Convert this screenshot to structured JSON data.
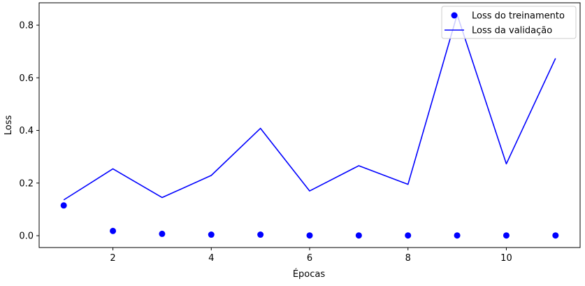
{
  "chart_data": {
    "type": "line",
    "title": "",
    "xlabel": "Épocas",
    "ylabel": "Loss",
    "xlim": [
      0.5,
      11.5
    ],
    "ylim": [
      -0.045,
      0.885
    ],
    "x_ticks": [
      2,
      4,
      6,
      8,
      10
    ],
    "y_ticks": [
      0.0,
      0.2,
      0.4,
      0.6,
      0.8
    ],
    "x_tick_labels": [
      "2",
      "4",
      "6",
      "8",
      "10"
    ],
    "y_tick_labels": [
      "0.0",
      "0.2",
      "0.4",
      "0.6",
      "0.8"
    ],
    "grid": false,
    "legend_position": "top-right",
    "x": [
      1,
      2,
      3,
      4,
      5,
      6,
      7,
      8,
      9,
      10,
      11
    ],
    "series": [
      {
        "name": "Loss do treinamento",
        "style": "scatter",
        "color": "#0000ff",
        "values": [
          0.115,
          0.018,
          0.007,
          0.004,
          0.004,
          0.001,
          0.001,
          0.001,
          0.001,
          0.001,
          0.001
        ]
      },
      {
        "name": "Loss da validação",
        "style": "line",
        "color": "#0000ff",
        "values": [
          0.136,
          0.254,
          0.145,
          0.229,
          0.408,
          0.17,
          0.266,
          0.195,
          0.84,
          0.273,
          0.674
        ]
      }
    ]
  }
}
